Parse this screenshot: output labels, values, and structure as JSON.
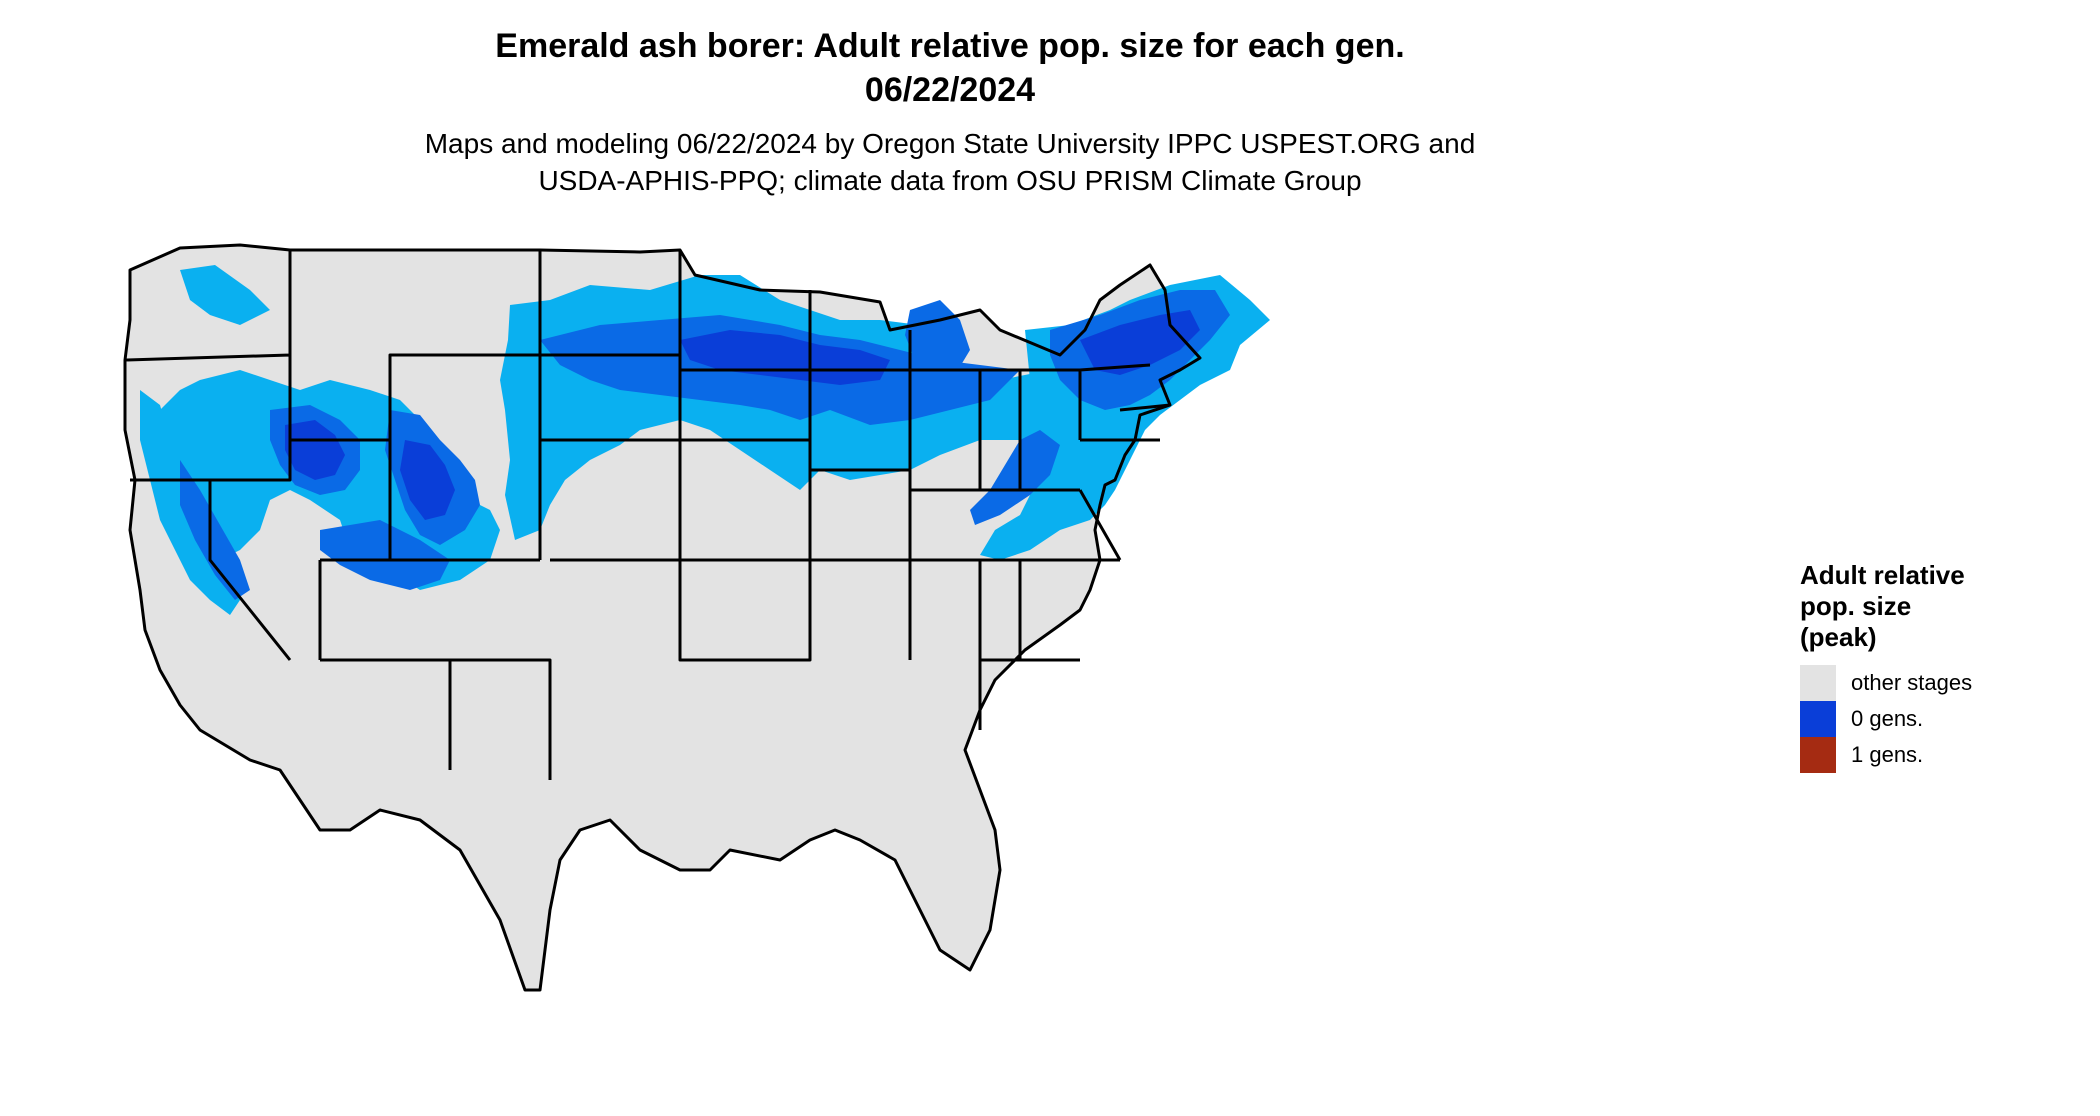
{
  "title_line1": "Emerald ash borer: Adult relative pop. size for each gen.",
  "title_line2": "06/22/2024",
  "subtitle_line1": "Maps and modeling 06/22/2024 by Oregon State University IPPC USPEST.ORG and",
  "subtitle_line2": "USDA-APHIS-PPQ; climate data from OSU PRISM Climate Group",
  "legend": {
    "title_line1": "Adult relative",
    "title_line2": "pop. size",
    "title_line3": "(peak)",
    "items": [
      {
        "label": "other stages",
        "color": "#e3e3e3"
      },
      {
        "label": "0 gens.",
        "color": "#0a3ed8"
      },
      {
        "label": "1 gens.",
        "color": "#a52b12"
      }
    ]
  },
  "colors": {
    "background": "#e3e3e3",
    "light_blue": "#0ab0f0",
    "mid_blue": "#0a6ae6",
    "dark_blue": "#0a3ed8",
    "border": "#000000"
  }
}
